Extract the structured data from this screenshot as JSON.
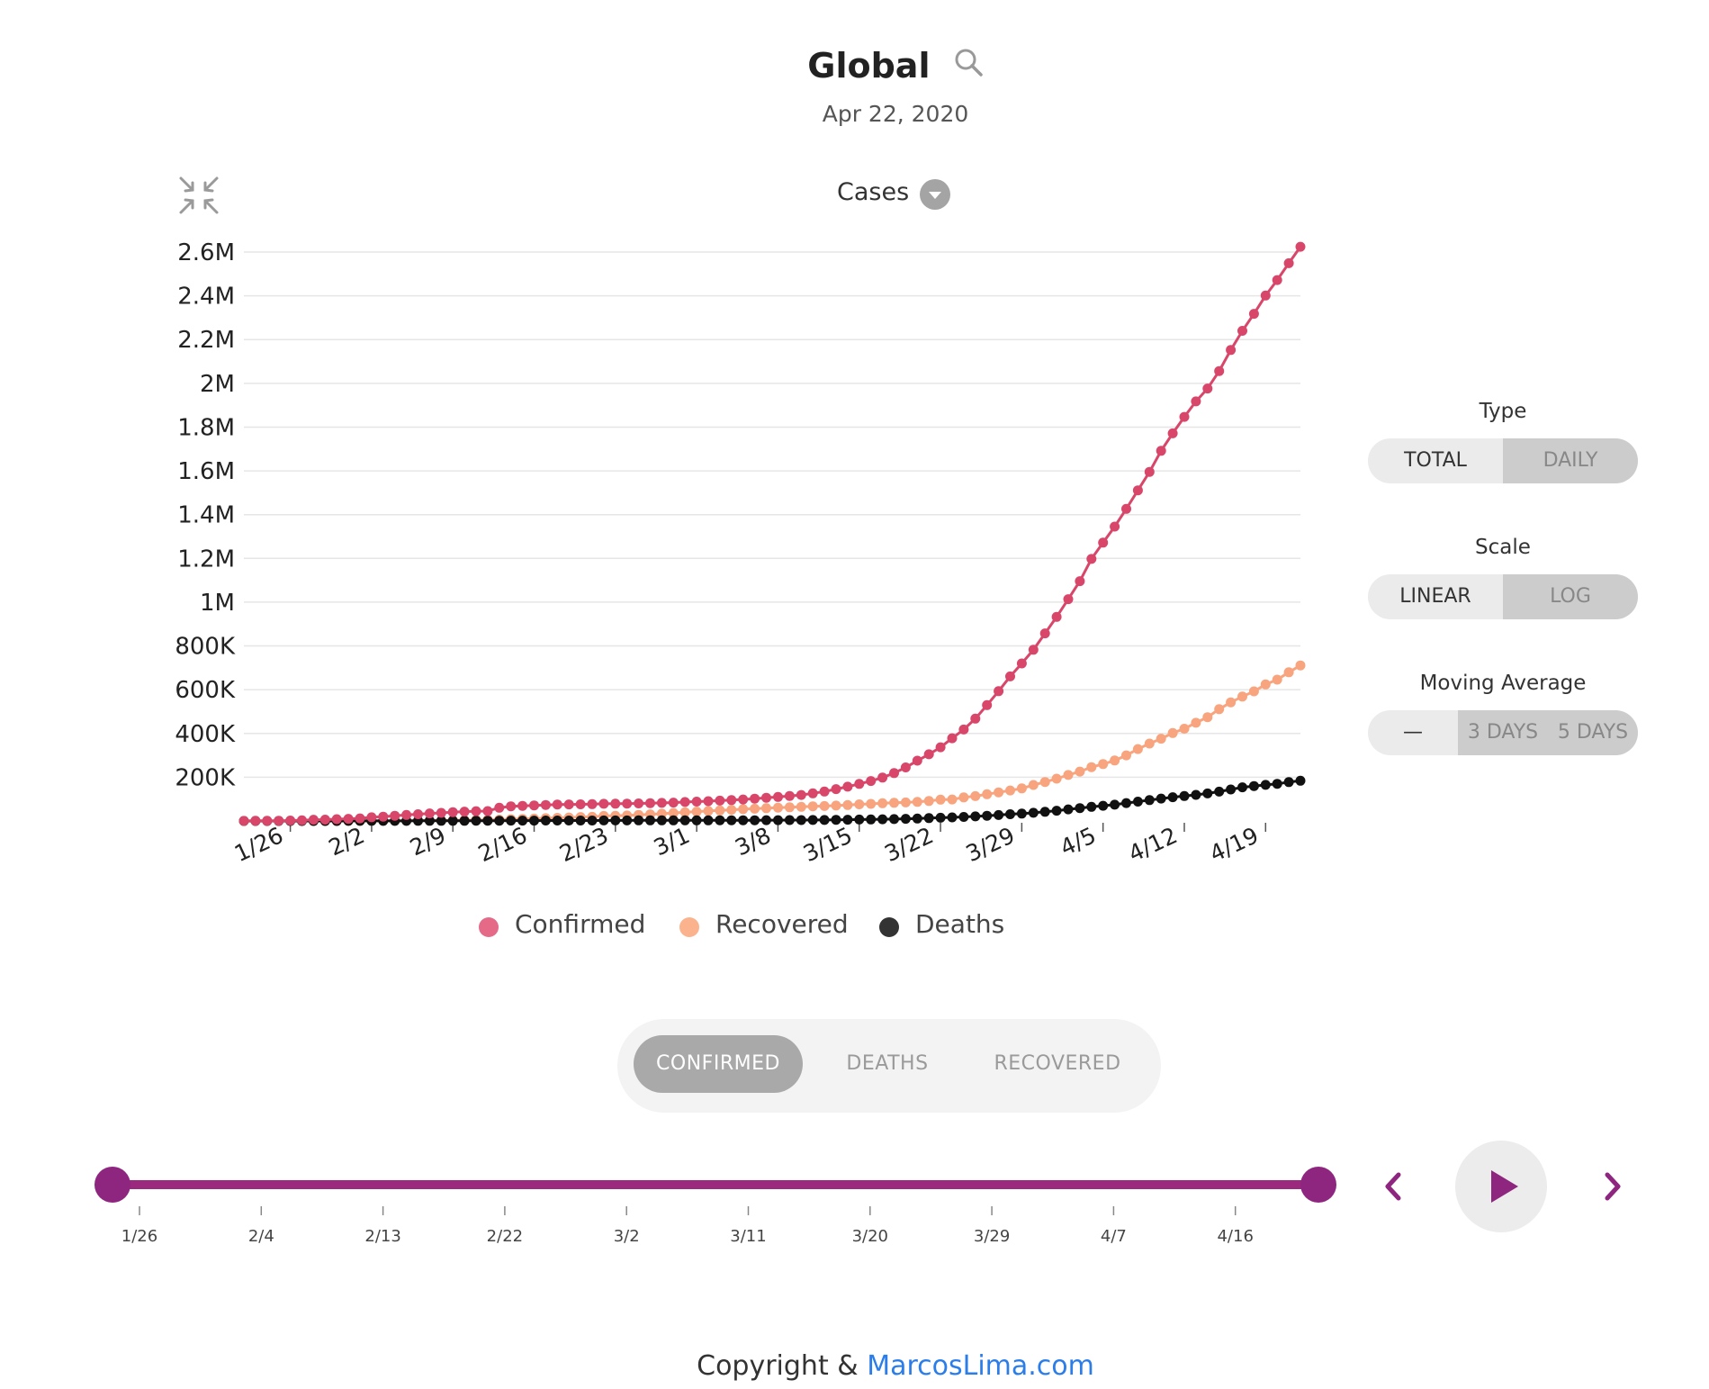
{
  "header": {
    "title": "Global",
    "date": "Apr 22, 2020",
    "metric_label": "Cases"
  },
  "controls": {
    "type": {
      "label": "Type",
      "options": [
        "TOTAL",
        "DAILY"
      ],
      "selected": "TOTAL"
    },
    "scale": {
      "label": "Scale",
      "options": [
        "LINEAR",
        "LOG"
      ],
      "selected": "LINEAR"
    },
    "moving_average": {
      "label": "Moving Average",
      "options": [
        "—",
        "3 DAYS",
        "5 DAYS"
      ],
      "selected": "—"
    }
  },
  "segmented": {
    "options": [
      "CONFIRMED",
      "DEATHS",
      "RECOVERED"
    ],
    "selected": "CONFIRMED"
  },
  "timeline": {
    "labels": [
      "1/26",
      "2/4",
      "2/13",
      "2/22",
      "3/2",
      "3/11",
      "3/20",
      "3/29",
      "4/7",
      "4/16"
    ],
    "range_start": "1/22",
    "range_end": "4/22"
  },
  "footer": {
    "prefix": "Copyright & ",
    "link": "MarcosLima.com"
  },
  "colors": {
    "confirmed": "#d8466a",
    "recovered": "#f8a47e",
    "deaths": "#111111",
    "accent": "#9b2a7f"
  },
  "chart_data": {
    "type": "line",
    "title": "",
    "x_start": "1/22",
    "x_end": "4/22",
    "x_ticks": [
      "1/26",
      "2/2",
      "2/9",
      "2/16",
      "2/23",
      "3/1",
      "3/8",
      "3/15",
      "3/22",
      "3/29",
      "4/5",
      "4/12",
      "4/19"
    ],
    "y_ticks": [
      "200K",
      "400K",
      "600K",
      "800K",
      "1M",
      "1.2M",
      "1.4M",
      "1.6M",
      "1.8M",
      "2M",
      "2.2M",
      "2.4M",
      "2.6M"
    ],
    "ylim": [
      0,
      2600000
    ],
    "grid": true,
    "legend": "bottom",
    "series": [
      {
        "name": "Confirmed",
        "color": "#d8466a",
        "values": [
          555,
          654,
          941,
          1434,
          2118,
          2927,
          5578,
          6166,
          8234,
          9927,
          12038,
          16787,
          19881,
          23892,
          27635,
          30817,
          34391,
          37120,
          40150,
          42762,
          44802,
          45221,
          60368,
          66885,
          69030,
          71224,
          73258,
          75136,
          75639,
          76197,
          76819,
          78572,
          78958,
          79561,
          80406,
          81388,
          82746,
          84112,
          86604,
          88585,
          90443,
          93016,
          95314,
          98425,
          102050,
          106099,
          109991,
          114381,
          118948,
          126214,
          134576,
          145483,
          156653,
          169593,
          182490,
          198238,
          218822,
          244933,
          275597,
          305036,
          336953,
          378235,
          418045,
          467653,
          529591,
          593291,
          660693,
          720140,
          782389,
          857487,
          932605,
          1013466,
          1095917,
          1197405,
          1272115,
          1345101,
          1426096,
          1511104,
          1595350,
          1691719,
          1771514,
          1846680,
          1917320,
          1976191,
          2056054,
          2152437,
          2240191,
          2317758,
          2401379,
          2472259,
          2549123,
          2624074
        ]
      },
      {
        "name": "Recovered",
        "color": "#f8a47e",
        "values": [
          28,
          30,
          36,
          39,
          52,
          61,
          107,
          126,
          143,
          222,
          284,
          472,
          623,
          852,
          1124,
          1487,
          2011,
          2616,
          3244,
          3946,
          4683,
          5150,
          6295,
          8058,
          9395,
          10865,
          12583,
          14352,
          16121,
          18177,
          18890,
          22886,
          23394,
          25227,
          27905,
          30384,
          33277,
          36711,
          39782,
          42716,
          45602,
          48229,
          51171,
          53797,
          55866,
          58359,
          60694,
          62494,
          64404,
          67003,
          68324,
          70251,
          72624,
          76034,
          78088,
          80840,
          83207,
          84854,
          87256,
          91499,
          97704,
          98351,
          107890,
          113604,
          122150,
          130910,
          139415,
          149082,
          164566,
          178034,
          193177,
          210263,
          225796,
          246152,
          260012,
          276515,
          300054,
          328661,
          353975,
          376096,
          402110,
          421722,
          448655,
          474261,
          511019,
          542107,
          568343,
          592319,
          623903,
          645738,
          679819,
          710972
        ]
      },
      {
        "name": "Deaths",
        "color": "#111111",
        "values": [
          17,
          18,
          26,
          42,
          56,
          82,
          131,
          133,
          171,
          213,
          259,
          362,
          426,
          492,
          564,
          634,
          719,
          806,
          906,
          1013,
          1113,
          1118,
          1371,
          1523,
          1666,
          1770,
          1868,
          2007,
          2122,
          2247,
          2251,
          2458,
          2469,
          2629,
          2708,
          2770,
          2814,
          2872,
          2941,
          2996,
          3085,
          3160,
          3254,
          3348,
          3460,
          3558,
          3802,
          3988,
          4262,
          4615,
          4720,
          5404,
          5819,
          6440,
          7126,
          7905,
          8733,
          9867,
          11299,
          12973,
          14623,
          16497,
          18615,
          21181,
          23970,
          27198,
          30652,
          33925,
          37582,
          42107,
          46809,
          52983,
          58787,
          64606,
          69374,
          74565,
          81865,
          88338,
          95455,
          102525,
          108503,
          114091,
          119482,
          125984,
          134177,
          143801,
          153822,
          159510,
          165044,
          169986,
          177640,
          184066
        ]
      }
    ]
  }
}
